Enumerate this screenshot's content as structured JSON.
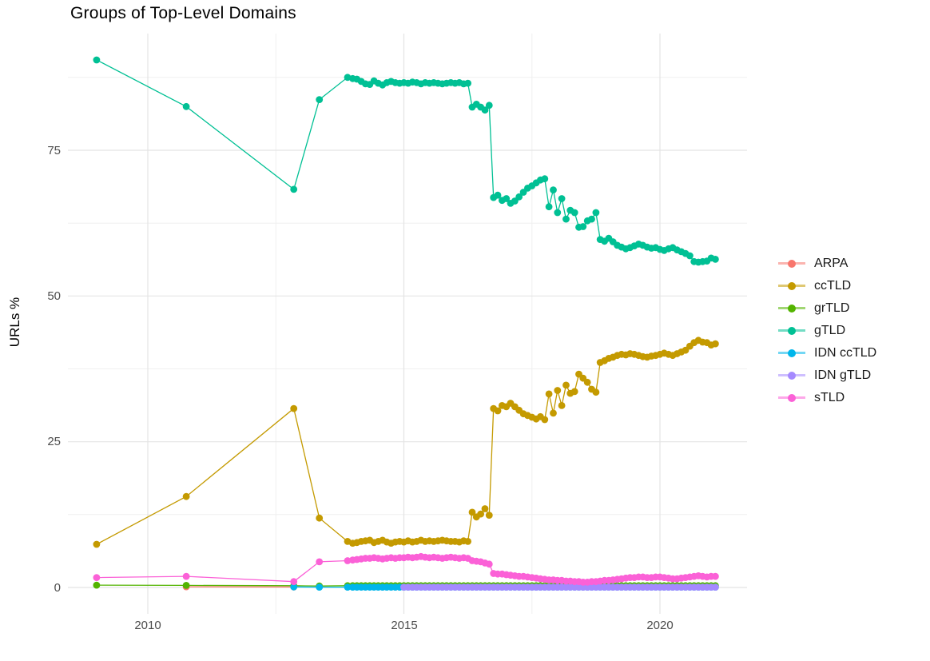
{
  "title": "Groups of Top-Level Domains",
  "axes": {
    "x": {
      "ticks": [
        {
          "label": "2010",
          "value": 2010
        },
        {
          "label": "2015",
          "value": 2015
        },
        {
          "label": "2020",
          "value": 2020
        }
      ],
      "minor": [
        2012.5,
        2017.5
      ]
    },
    "y": {
      "title": "URLs %",
      "ticks": [
        {
          "label": "0",
          "value": 0
        },
        {
          "label": "25",
          "value": 25
        },
        {
          "label": "50",
          "value": 50
        },
        {
          "label": "75",
          "value": 75
        }
      ],
      "minor": [
        12.5,
        37.5,
        62.5,
        87.5
      ]
    }
  },
  "chart_data": {
    "type": "line",
    "title": "Groups of Top-Level Domains",
    "xlabel": "",
    "ylabel": "URLs %",
    "xlim": [
      2008.5,
      2021.6
    ],
    "ylim": [
      -4.5,
      95
    ],
    "x_ticks": [
      2010,
      2015,
      2020
    ],
    "y_ticks": [
      0,
      25,
      50,
      75
    ],
    "grid": true,
    "legend_position": "right",
    "point_marker": "circle",
    "series": [
      {
        "name": "ARPA",
        "color": "#F8766D",
        "points": [
          [
            2010.75,
            0.12
          ],
          [
            2012.85,
            0.08
          ]
        ]
      },
      {
        "name": "ccTLD",
        "color": "#C49A00",
        "points": [
          [
            2009.0,
            7.4
          ],
          [
            2010.75,
            15.6
          ],
          [
            2012.85,
            30.7
          ],
          [
            2013.35,
            11.9
          ],
          [
            2013.9,
            7.9
          ]
        ],
        "monthly": {
          "start": 2014.0,
          "values": [
            7.6,
            7.7,
            7.9,
            8.0,
            8.1,
            7.7,
            7.9,
            8.1,
            7.8,
            7.6,
            7.8,
            7.9,
            7.8,
            8.0,
            7.8,
            7.9,
            8.1,
            7.9,
            8.0,
            7.9,
            8.0,
            8.1,
            8.0,
            7.9,
            7.9,
            7.8,
            8.0,
            7.9,
            12.9,
            12.1,
            12.6,
            13.5,
            12.4,
            30.7,
            30.3,
            31.2,
            31.0,
            31.6,
            31.0,
            30.4,
            29.8,
            29.5,
            29.2,
            28.9,
            29.3,
            28.8,
            33.2,
            29.9,
            33.8,
            31.2,
            34.7,
            33.3,
            33.6,
            36.6,
            35.9,
            35.2,
            34.0,
            33.5,
            38.6,
            38.9,
            39.3,
            39.5,
            39.8,
            40.0,
            39.9,
            40.1,
            40.0,
            39.8,
            39.6,
            39.5,
            39.7,
            39.8,
            40.0,
            40.2,
            40.0,
            39.8,
            40.1,
            40.4,
            40.7,
            41.4,
            42.0,
            42.4,
            42.1,
            42.0,
            41.6,
            41.8
          ]
        }
      },
      {
        "name": "grTLD",
        "color": "#53B400",
        "points": [
          [
            2009.0,
            0.4
          ],
          [
            2010.75,
            0.35
          ],
          [
            2012.85,
            0.3
          ],
          [
            2013.35,
            0.25
          ],
          [
            2013.9,
            0.3
          ]
        ],
        "monthly": {
          "start": 2014.0,
          "values": [
            0.3,
            0.3,
            0.3,
            0.3,
            0.3,
            0.3,
            0.3,
            0.3,
            0.3,
            0.3,
            0.3,
            0.3,
            0.3,
            0.3,
            0.3,
            0.3,
            0.3,
            0.3,
            0.3,
            0.3,
            0.3,
            0.3,
            0.3,
            0.3,
            0.3,
            0.3,
            0.3,
            0.3,
            0.3,
            0.3,
            0.3,
            0.3,
            0.3,
            0.3,
            0.3,
            0.3,
            0.3,
            0.3,
            0.3,
            0.3,
            0.3,
            0.3,
            0.3,
            0.3,
            0.3,
            0.3,
            0.3,
            0.3,
            0.3,
            0.3,
            0.3,
            0.3,
            0.3,
            0.3,
            0.3,
            0.3,
            0.3,
            0.3,
            0.3,
            0.3,
            0.3,
            0.3,
            0.3,
            0.3,
            0.3,
            0.3,
            0.3,
            0.3,
            0.3,
            0.3,
            0.3,
            0.3,
            0.3,
            0.3,
            0.3,
            0.3,
            0.3,
            0.3,
            0.3,
            0.3,
            0.3,
            0.3,
            0.3,
            0.3,
            0.3,
            0.3
          ]
        }
      },
      {
        "name": "gTLD",
        "color": "#00C094",
        "points": [
          [
            2009.0,
            90.5
          ],
          [
            2010.75,
            82.5
          ],
          [
            2012.85,
            68.3
          ],
          [
            2013.35,
            83.7
          ],
          [
            2013.9,
            87.5
          ]
        ],
        "monthly": {
          "start": 2014.0,
          "values": [
            87.3,
            87.2,
            86.8,
            86.4,
            86.3,
            86.9,
            86.5,
            86.2,
            86.6,
            86.8,
            86.6,
            86.5,
            86.6,
            86.5,
            86.7,
            86.6,
            86.4,
            86.6,
            86.5,
            86.6,
            86.5,
            86.4,
            86.5,
            86.6,
            86.5,
            86.6,
            86.4,
            86.5,
            82.4,
            82.9,
            82.4,
            81.9,
            82.7,
            66.9,
            67.3,
            66.4,
            66.7,
            65.9,
            66.3,
            67.0,
            67.8,
            68.5,
            68.9,
            69.4,
            69.9,
            70.1,
            65.3,
            68.2,
            64.3,
            66.7,
            63.2,
            64.7,
            64.3,
            61.8,
            61.9,
            62.9,
            63.2,
            64.3,
            59.7,
            59.4,
            59.9,
            59.3,
            58.7,
            58.4,
            58.1,
            58.3,
            58.6,
            58.9,
            58.7,
            58.4,
            58.2,
            58.3,
            58.0,
            57.8,
            58.1,
            58.3,
            57.9,
            57.6,
            57.3,
            56.9,
            55.9,
            55.8,
            55.9,
            56.0,
            56.5,
            56.3
          ]
        }
      },
      {
        "name": "IDN ccTLD",
        "color": "#00B6EB",
        "points": [
          [
            2012.85,
            0.1
          ],
          [
            2013.35,
            0.06
          ],
          [
            2013.9,
            0.06
          ]
        ],
        "monthly": {
          "start": 2014.0,
          "values": [
            0.06,
            0.06,
            0.06,
            0.06,
            0.06,
            0.06,
            0.06,
            0.06,
            0.06,
            0.06,
            0.06,
            0.06,
            0.06,
            0.06,
            0.06,
            0.06,
            0.06,
            0.06,
            0.06,
            0.06,
            0.06,
            0.06,
            0.06,
            0.06,
            0.06,
            0.06,
            0.06,
            0.06,
            0.06,
            0.06,
            0.06,
            0.06,
            0.06,
            0.06,
            0.06,
            0.06,
            0.06,
            0.06,
            0.06,
            0.06,
            0.06,
            0.06,
            0.06,
            0.06,
            0.06,
            0.06,
            0.06,
            0.06,
            0.06,
            0.06,
            0.06,
            0.06,
            0.06,
            0.06,
            0.06,
            0.06,
            0.06,
            0.06,
            0.06,
            0.06,
            0.06,
            0.06,
            0.06,
            0.06,
            0.06,
            0.06,
            0.06,
            0.06,
            0.06,
            0.06,
            0.06,
            0.06,
            0.06,
            0.06,
            0.06,
            0.06,
            0.06,
            0.06,
            0.06,
            0.06,
            0.06,
            0.06,
            0.06,
            0.06,
            0.06,
            0.06
          ]
        }
      },
      {
        "name": "IDN gTLD",
        "color": "#A58AFF",
        "points": [],
        "monthly": {
          "start": 2015.0,
          "values": [
            0.05,
            0.05,
            0.05,
            0.05,
            0.05,
            0.05,
            0.05,
            0.05,
            0.05,
            0.05,
            0.05,
            0.05,
            0.05,
            0.05,
            0.05,
            0.05,
            0.05,
            0.05,
            0.05,
            0.05,
            0.05,
            0.05,
            0.05,
            0.05,
            0.05,
            0.05,
            0.05,
            0.05,
            0.05,
            0.05,
            0.05,
            0.05,
            0.05,
            0.05,
            0.05,
            0.05,
            0.05,
            0.05,
            0.05,
            0.05,
            0.05,
            0.05,
            0.05,
            0.05,
            0.05,
            0.05,
            0.05,
            0.05,
            0.05,
            0.05,
            0.05,
            0.05,
            0.05,
            0.05,
            0.05,
            0.05,
            0.05,
            0.05,
            0.05,
            0.05,
            0.05,
            0.05,
            0.05,
            0.05,
            0.05,
            0.05,
            0.05,
            0.05,
            0.05,
            0.05,
            0.05,
            0.05,
            0.05,
            0.05
          ]
        }
      },
      {
        "name": "sTLD",
        "color": "#FB61D7",
        "points": [
          [
            2009.0,
            1.7
          ],
          [
            2010.75,
            1.9
          ],
          [
            2012.85,
            1.0
          ],
          [
            2013.35,
            4.4
          ],
          [
            2013.9,
            4.6
          ]
        ],
        "monthly": {
          "start": 2014.0,
          "values": [
            4.7,
            4.8,
            4.9,
            5.0,
            5.0,
            5.1,
            5.0,
            4.9,
            5.0,
            5.1,
            5.0,
            5.1,
            5.1,
            5.2,
            5.1,
            5.2,
            5.3,
            5.2,
            5.1,
            5.2,
            5.1,
            5.0,
            5.1,
            5.2,
            5.1,
            5.0,
            5.1,
            5.0,
            4.6,
            4.5,
            4.4,
            4.2,
            4.0,
            2.4,
            2.3,
            2.3,
            2.2,
            2.1,
            2.0,
            1.9,
            1.9,
            1.8,
            1.7,
            1.6,
            1.5,
            1.4,
            1.3,
            1.3,
            1.2,
            1.2,
            1.1,
            1.1,
            1.0,
            1.0,
            0.9,
            0.9,
            1.0,
            1.0,
            1.1,
            1.2,
            1.2,
            1.3,
            1.4,
            1.5,
            1.6,
            1.7,
            1.7,
            1.8,
            1.8,
            1.7,
            1.7,
            1.8,
            1.8,
            1.7,
            1.6,
            1.5,
            1.5,
            1.6,
            1.7,
            1.8,
            1.9,
            2.0,
            1.9,
            1.8,
            1.9,
            1.9
          ]
        }
      }
    ]
  }
}
